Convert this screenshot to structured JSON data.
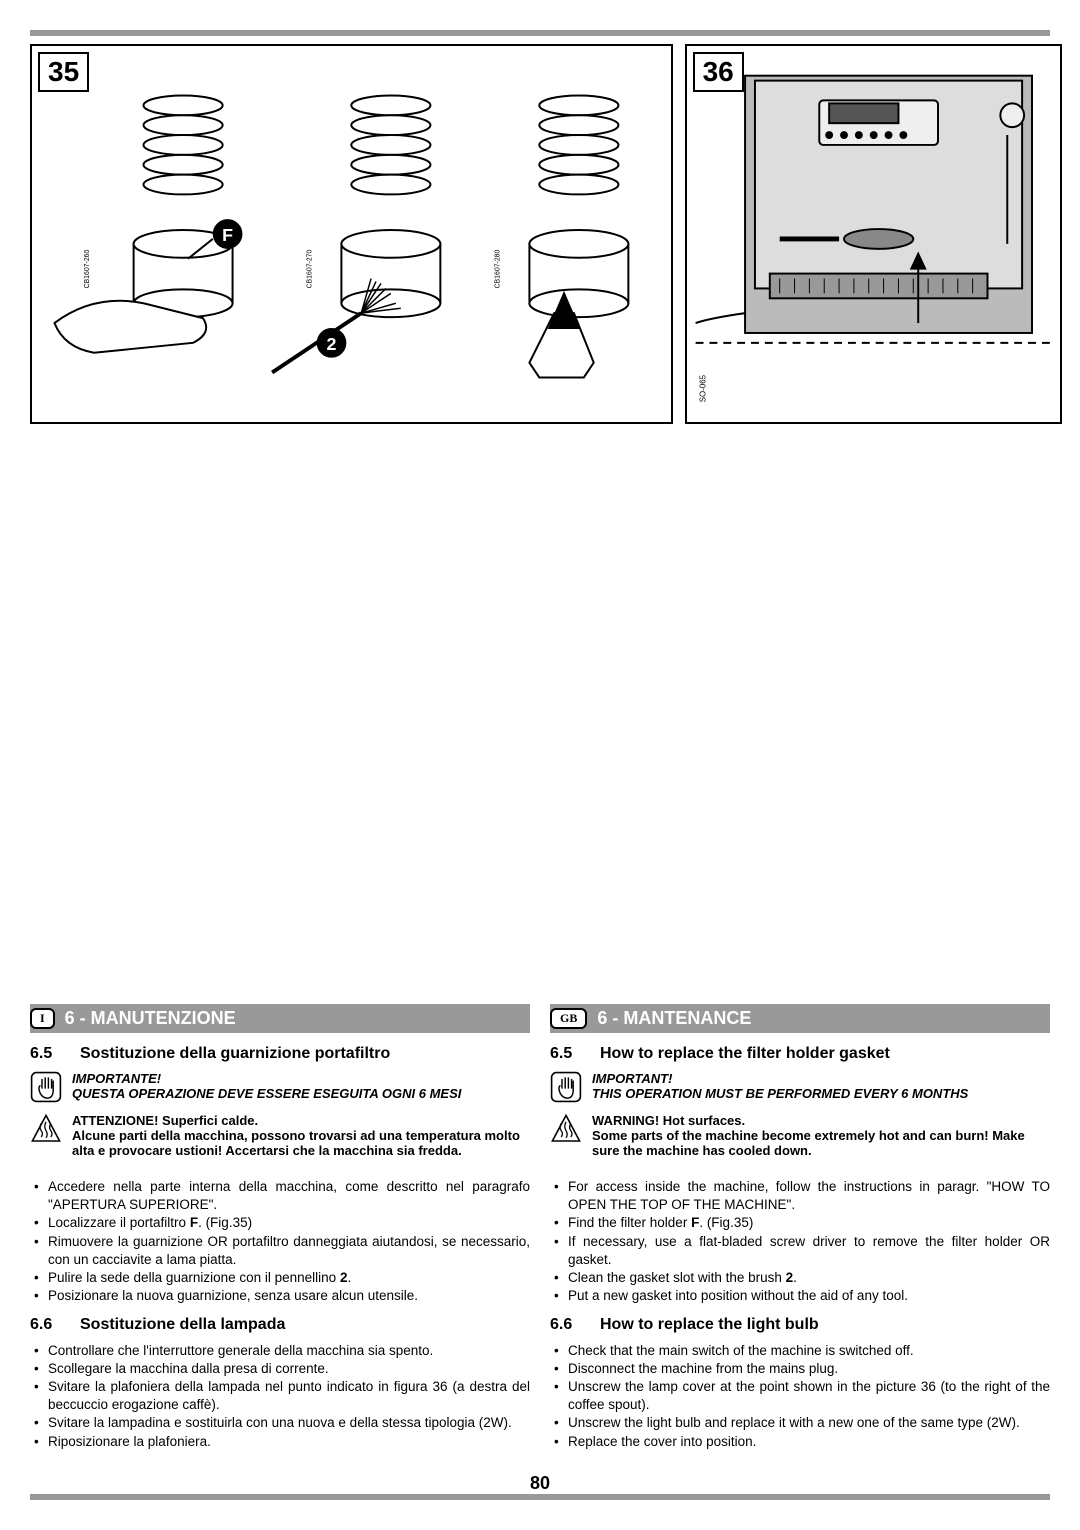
{
  "page_number": "80",
  "figures": {
    "fig35": {
      "num": "35",
      "labels": {
        "f": "F",
        "two": "2"
      },
      "codes": [
        "CB1607-260",
        "CB1607-270",
        "CB1607-280"
      ]
    },
    "fig36": {
      "num": "36",
      "code": "SO-065"
    }
  },
  "italian": {
    "lang": "I",
    "heading": "6 - MANUTENZIONE",
    "sec65_num": "6.5",
    "sec65_title": "Sostituzione della guarnizione portafiltro",
    "important_label": "IMPORTANTE!",
    "important_text": "QUESTA OPERAZIONE DEVE ESSERE ESEGUITA OGNI 6 MESI",
    "warning_label": "ATTENZIONE! Superfici calde.",
    "warning_text": "Alcune parti della macchina, possono trovarsi ad una temperatura molto alta e provocare ustioni! Accertarsi che la macchina sia fredda.",
    "list65": [
      "Accedere nella parte interna della macchina, come descritto nel paragrafo \"APERTURA SUPERIORE\".",
      "Localizzare il portafiltro <b>F</b>. (Fig.35)",
      "Rimuovere la guarnizione OR portafiltro danneggiata aiutandosi, se necessario, con un cacciavite a lama piatta.",
      "Pulire la sede della guarnizione con il pennellino <b>2</b>.",
      "Posizionare la nuova guarnizione, senza usare alcun utensile."
    ],
    "sec66_num": "6.6",
    "sec66_title": "Sostituzione della lampada",
    "list66": [
      "Controllare che l'interruttore generale della macchina sia spento.",
      "Scollegare la macchina dalla presa di corrente.",
      "Svitare la plafoniera della lampada nel punto indicato in figura 36 (a destra del beccuccio erogazione caffè).",
      "Svitare la lampadina e sostituirla con una nuova e della stessa tipologia (2W).",
      "Riposizionare la plafoniera."
    ]
  },
  "english": {
    "lang": "GB",
    "heading": "6 - MANTENANCE",
    "sec65_num": "6.5",
    "sec65_title": "How to replace the filter holder gasket",
    "important_label": "IMPORTANT!",
    "important_text": "THIS OPERATION MUST BE PERFORMED EVERY 6 MONTHS",
    "warning_label": "WARNING! Hot surfaces.",
    "warning_text": "Some parts of the machine become extremely hot and can burn! Make sure the machine has cooled down.",
    "list65": [
      "For access inside the machine, follow the instructions in paragr. \"HOW TO OPEN THE TOP OF THE MACHINE\".",
      "Find the filter holder <b>F</b>. (Fig.35)",
      "If necessary, use a flat-bladed screw driver to remove the filter holder OR gasket.",
      "Clean the gasket slot with the brush <b>2</b>.",
      "Put a new gasket into position without the aid of any tool."
    ],
    "sec66_num": "6.6",
    "sec66_title": "How to replace the light bulb",
    "list66": [
      "Check that the main switch of the machine is switched off.",
      "Disconnect the machine from the mains plug.",
      "Unscrew the lamp cover at the point shown in the picture 36 (to the right of the coffee spout).",
      "Unscrew the light bulb and replace it with a new one of the same type (2W).",
      "Replace the cover into position."
    ]
  },
  "colors": {
    "gray": "#999999",
    "black": "#000000"
  }
}
